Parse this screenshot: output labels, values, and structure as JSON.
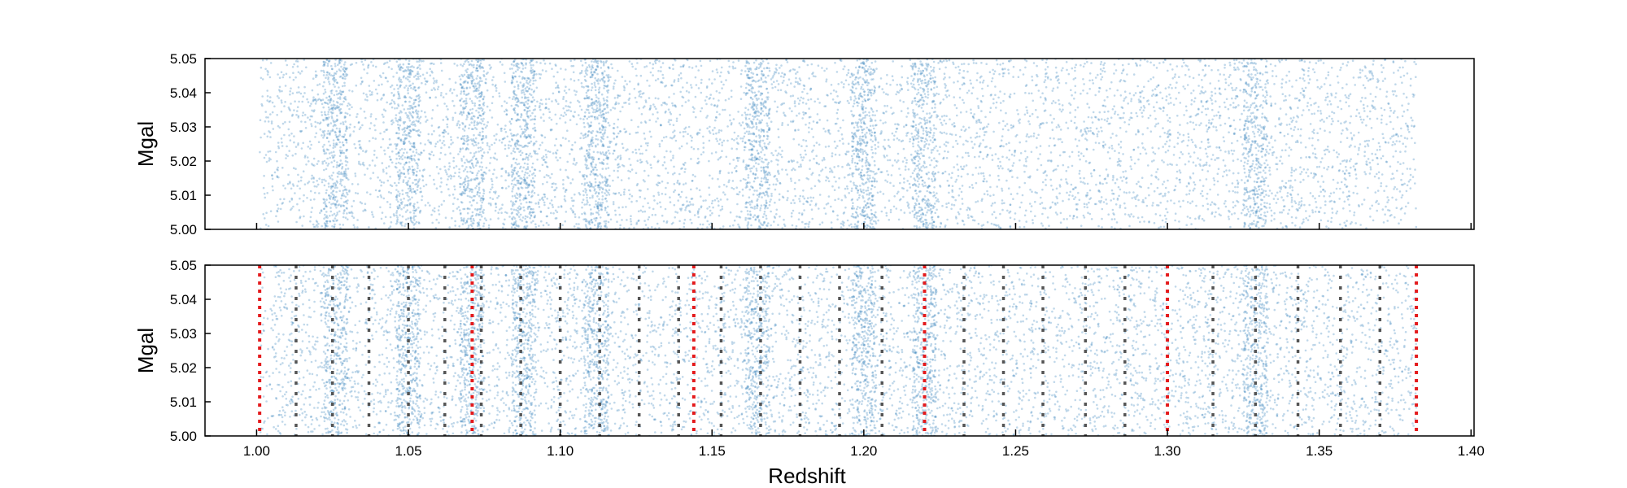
{
  "chart_data": [
    {
      "type": "scatter",
      "panel": "top",
      "ylabel": "Mgal",
      "xlabel": "",
      "xlim": [
        0.983,
        1.401
      ],
      "ylim": [
        5.0,
        5.05
      ],
      "xticks": [
        1.0,
        1.05,
        1.1,
        1.15,
        1.2,
        1.25,
        1.3,
        1.35,
        1.4
      ],
      "yticks": [
        "5.00",
        "5.01",
        "5.02",
        "5.03",
        "5.04",
        "5.05"
      ],
      "x_tick_labels_shown": false,
      "point_color": "#4a8fc4",
      "data_range_x": [
        1.001,
        1.382
      ],
      "density_peaks_x": [
        1.026,
        1.05,
        1.071,
        1.088,
        1.112,
        1.165,
        1.2,
        1.22,
        1.329
      ],
      "grid": false
    },
    {
      "type": "scatter",
      "panel": "bottom",
      "ylabel": "Mgal",
      "xlabel": "Redshift",
      "xlim": [
        0.983,
        1.401
      ],
      "ylim": [
        5.0,
        5.05
      ],
      "xticks": [
        "1.00",
        "1.05",
        "1.10",
        "1.15",
        "1.20",
        "1.25",
        "1.30",
        "1.35",
        "1.40"
      ],
      "yticks": [
        "5.00",
        "5.01",
        "5.02",
        "5.03",
        "5.04",
        "5.05"
      ],
      "point_color": "#4a8fc4",
      "data_range_x": [
        1.001,
        1.382
      ],
      "density_peaks_x": [
        1.026,
        1.05,
        1.071,
        1.088,
        1.112,
        1.165,
        1.2,
        1.22,
        1.329
      ],
      "bin_edges_red": [
        1.001,
        1.071,
        1.144,
        1.22,
        1.3,
        1.382
      ],
      "bin_edges_gray": [
        1.013,
        1.025,
        1.037,
        1.05,
        1.062,
        1.074,
        1.087,
        1.1,
        1.113,
        1.126,
        1.139,
        1.153,
        1.166,
        1.179,
        1.192,
        1.206,
        1.233,
        1.246,
        1.259,
        1.273,
        1.286,
        1.315,
        1.329,
        1.343,
        1.357,
        1.37
      ],
      "red_color": "#e41a1c",
      "gray_color": "#555555",
      "grid": false
    }
  ]
}
